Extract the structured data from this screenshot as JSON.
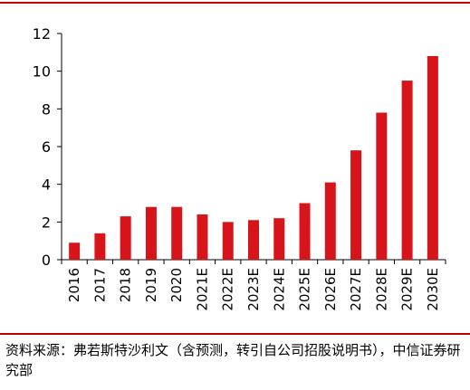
{
  "chart_data": {
    "type": "bar",
    "categories": [
      "2016",
      "2017",
      "2018",
      "2019",
      "2020",
      "2021E",
      "2022E",
      "2023E",
      "2024E",
      "2025E",
      "2026E",
      "2027E",
      "2028E",
      "2029E",
      "2030E"
    ],
    "values": [
      0.9,
      1.4,
      2.3,
      2.8,
      2.8,
      2.4,
      2.0,
      2.1,
      2.2,
      3.0,
      4.1,
      5.8,
      7.8,
      9.5,
      10.8
    ],
    "ylim": [
      0,
      12
    ],
    "yticks": [
      0,
      2,
      4,
      6,
      8,
      10,
      12
    ],
    "bar_color": "#d7141a",
    "grid": false,
    "legend": "none",
    "title": "",
    "xlabel": "",
    "ylabel": ""
  },
  "source": {
    "text": "资料来源：弗若斯特沙利文（含预测，转引自公司招股说明书），中信证券研究部"
  },
  "colors": {
    "rule": "#c00000"
  }
}
